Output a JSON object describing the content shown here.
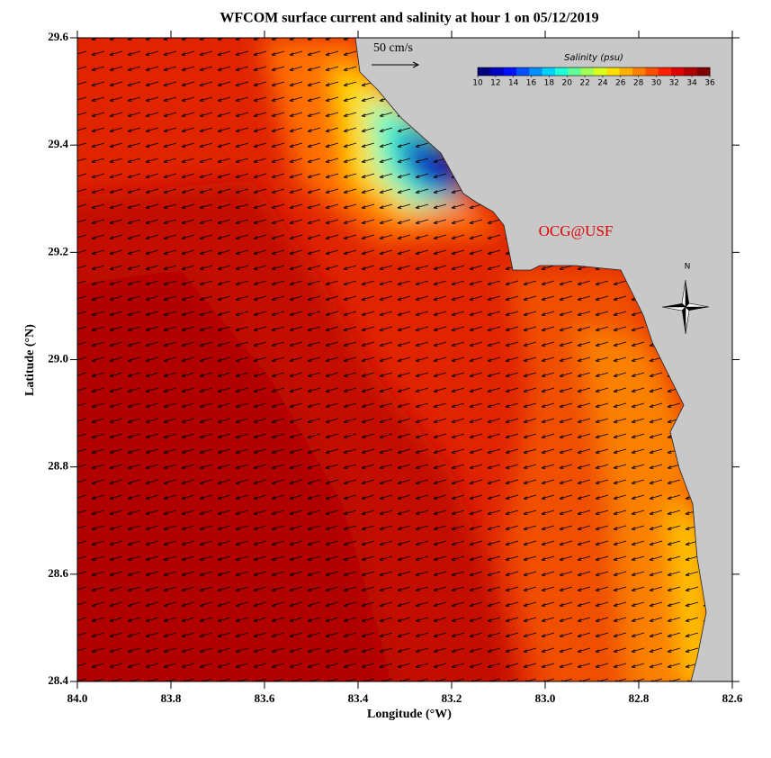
{
  "title": "WFCOM surface current and salinity at hour 1 on 05/12/2019",
  "map": {
    "xlabel": "Longitude (°W)",
    "ylabel": "Latitude (°N)",
    "xlim": [
      84.0,
      82.6
    ],
    "ylim": [
      28.4,
      29.6
    ],
    "xticks": [
      {
        "value": 84,
        "label": "84.0"
      },
      83.8,
      83.6,
      83.4,
      83.2,
      {
        "value": 83,
        "label": "83.0"
      },
      82.8,
      82.6
    ],
    "yticks": [
      28.4,
      28.6,
      28.8,
      {
        "value": 29,
        "label": "29.0"
      },
      29.2,
      29.4,
      29.6
    ],
    "scale_arrow_label": "50 cm/s",
    "annotation": "OCG@USF",
    "north_label": "N",
    "colorbar": {
      "title": "Salinity (psu)",
      "lim": [
        10,
        36
      ],
      "ticks": [
        10,
        12,
        14,
        16,
        18,
        20,
        22,
        24,
        26,
        28,
        30,
        32,
        34,
        36
      ],
      "colors": [
        "#00007f",
        "#0000c0",
        "#0010ff",
        "#0050ff",
        "#0090ff",
        "#00d0ff",
        "#20ffd8",
        "#60ff98",
        "#a0ff58",
        "#d8ff20",
        "#ffe000",
        "#ffb000",
        "#ff8000",
        "#ff5000",
        "#ff2000",
        "#e00000",
        "#b00000",
        "#800000"
      ]
    }
  }
}
